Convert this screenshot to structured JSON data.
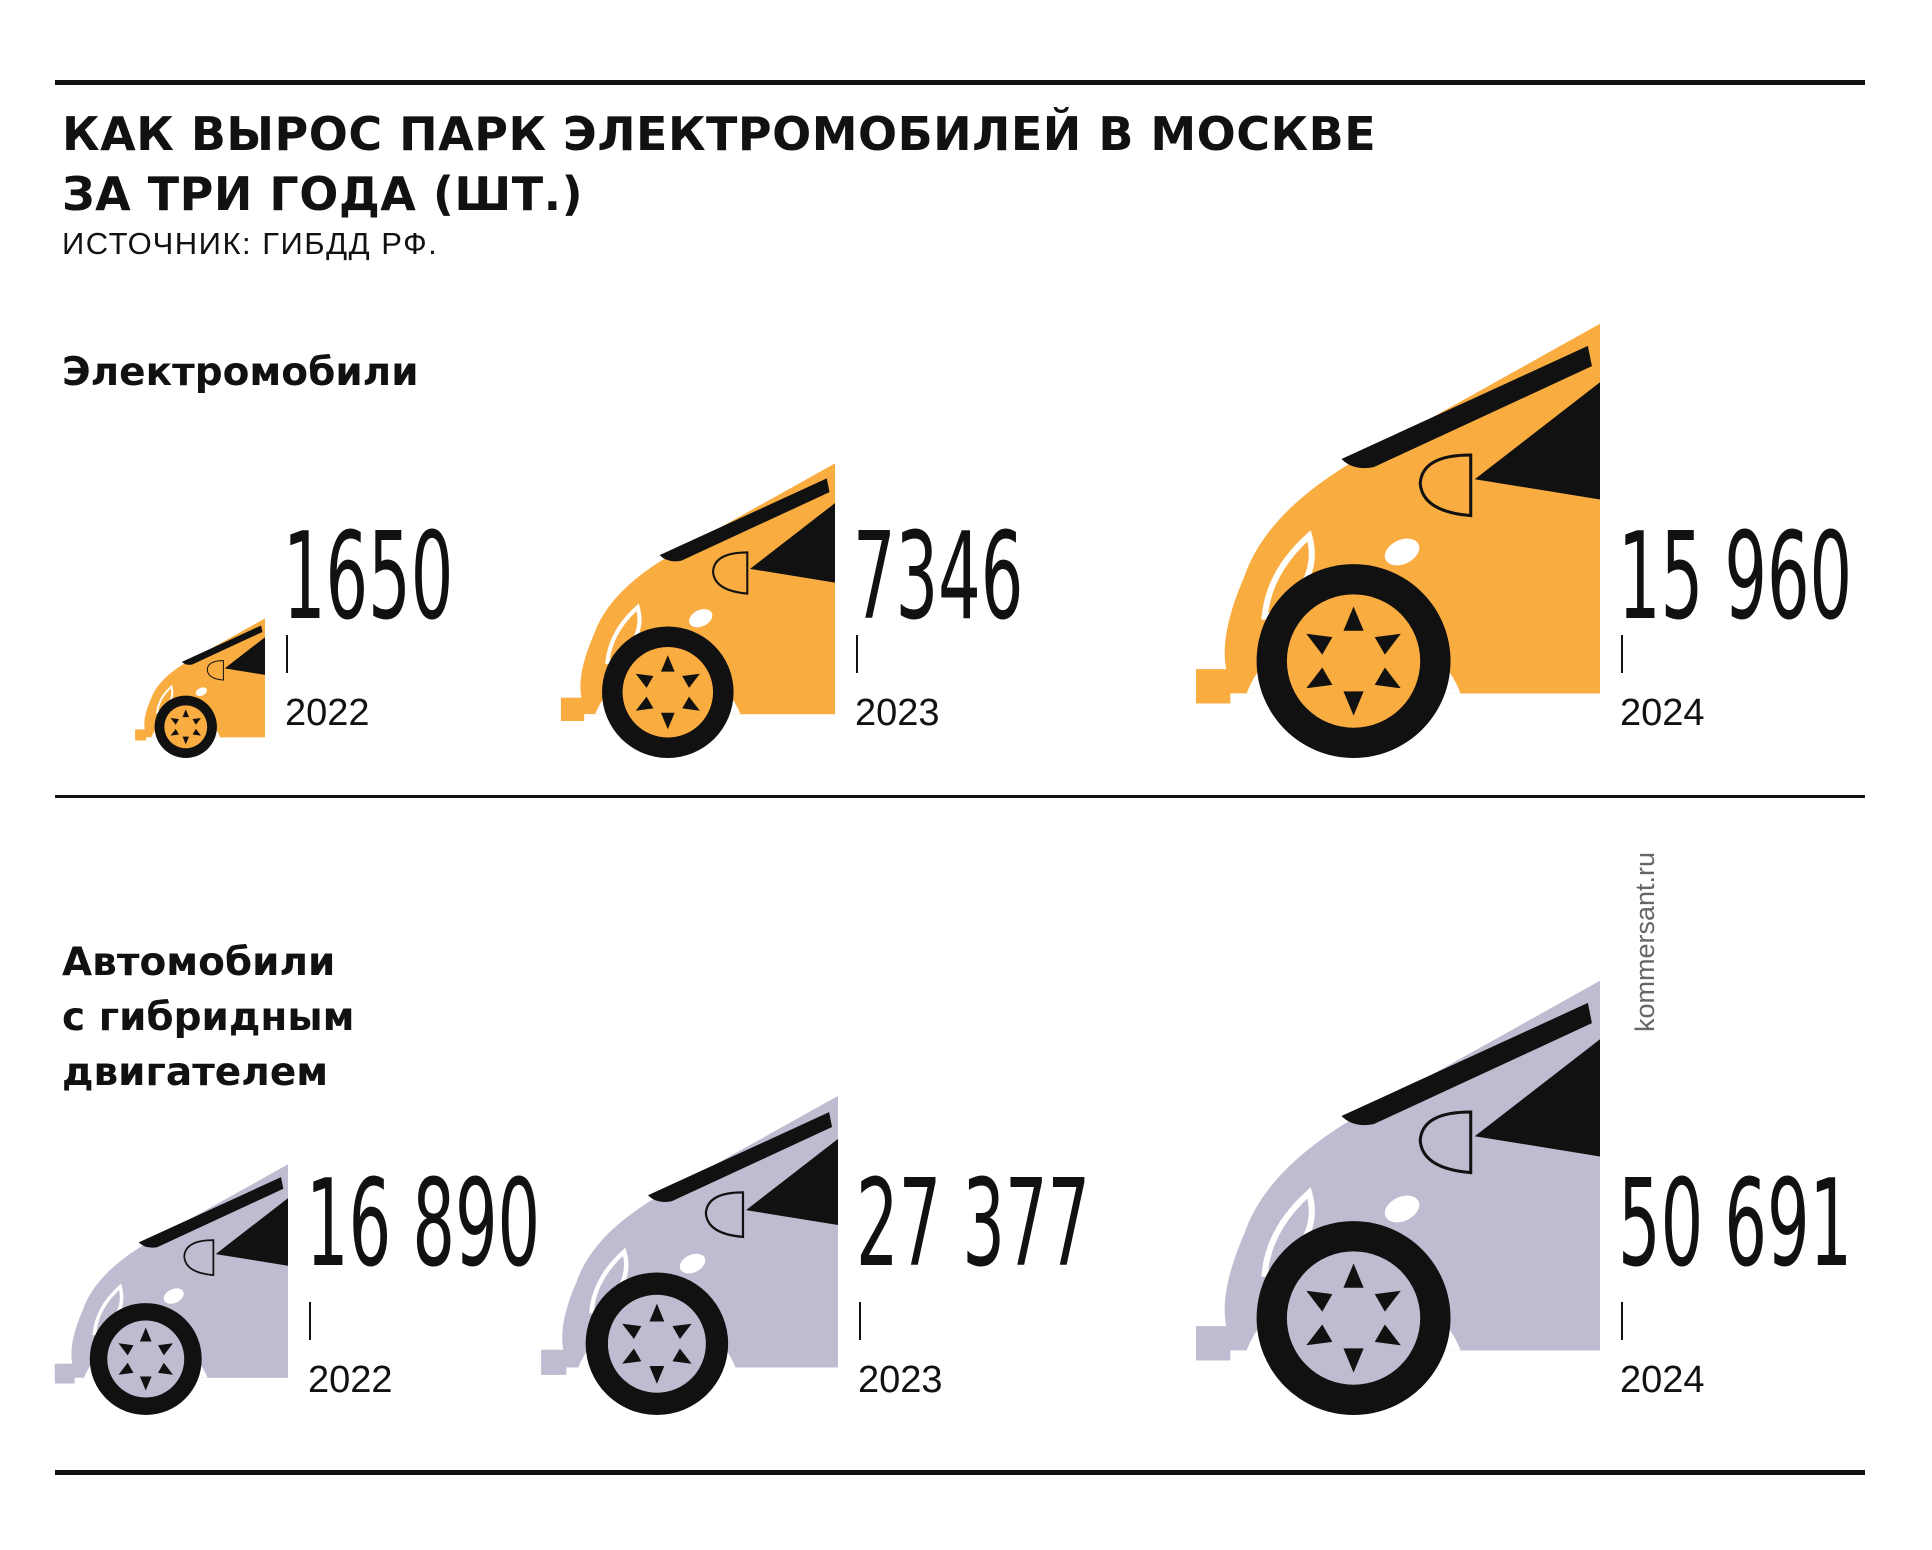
{
  "title_lines": [
    "КАК ВЫРОС ПАРК ЭЛЕКТРОМОБИЛЕЙ В МОСКВЕ",
    "ЗА ТРИ ГОДА (ШТ.)"
  ],
  "source": "ИСТОЧНИК: ГИБДД РФ.",
  "watermark": "kommersant.ru",
  "colors": {
    "electric": "#F9AC40",
    "hybrid": "#C0BBD0",
    "ink": "#111111",
    "background": "#FFFFFF"
  },
  "icons": [
    "car-front-icon",
    "wheel-icon"
  ],
  "chart_data": [
    {
      "type": "bar",
      "label_lines": [
        "Электромобили"
      ],
      "categories": [
        "2022",
        "2023",
        "2024"
      ],
      "values": [
        1650,
        7346,
        15960
      ],
      "value_labels": [
        "1650",
        "7346",
        "15 960"
      ],
      "color": "#F9AC40"
    },
    {
      "type": "bar",
      "label_lines": [
        "Автомобили",
        "с гибридным",
        "двигателем"
      ],
      "categories": [
        "2022",
        "2023",
        "2024"
      ],
      "values": [
        16890,
        27377,
        50691
      ],
      "value_labels": [
        "16 890",
        "27 377",
        "50 691"
      ],
      "color": "#C0BBD0"
    }
  ]
}
